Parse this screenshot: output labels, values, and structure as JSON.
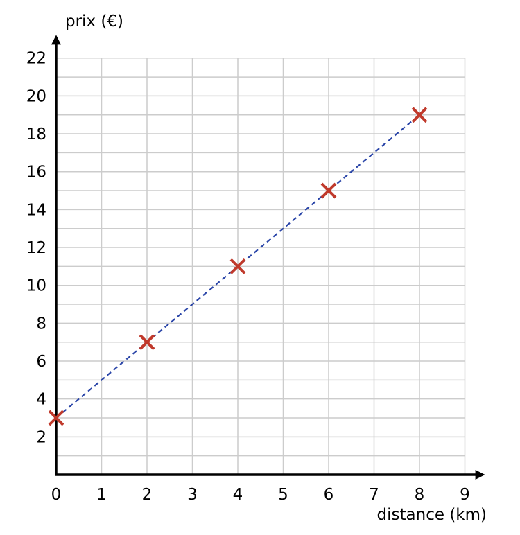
{
  "chart_data": {
    "type": "scatter",
    "xlabel": "distance (km)",
    "ylabel": "prix (€)",
    "xlim": [
      0,
      9
    ],
    "ylim": [
      0,
      22
    ],
    "x_ticks": [
      0,
      1,
      2,
      3,
      4,
      5,
      6,
      7,
      8,
      9
    ],
    "y_ticks": [
      2,
      4,
      6,
      8,
      10,
      12,
      14,
      16,
      18,
      20,
      22
    ],
    "grid": true,
    "grid_step": {
      "x": 1,
      "y": 1
    },
    "series": [
      {
        "x": [
          0,
          2,
          4,
          6,
          8
        ],
        "y": [
          3,
          7,
          11,
          15,
          19
        ],
        "marker": "x",
        "color": "#c0392b"
      }
    ],
    "line": {
      "from": [
        0,
        3
      ],
      "to": [
        8,
        19
      ],
      "style": "dashed",
      "color": "#2a45a8"
    }
  }
}
